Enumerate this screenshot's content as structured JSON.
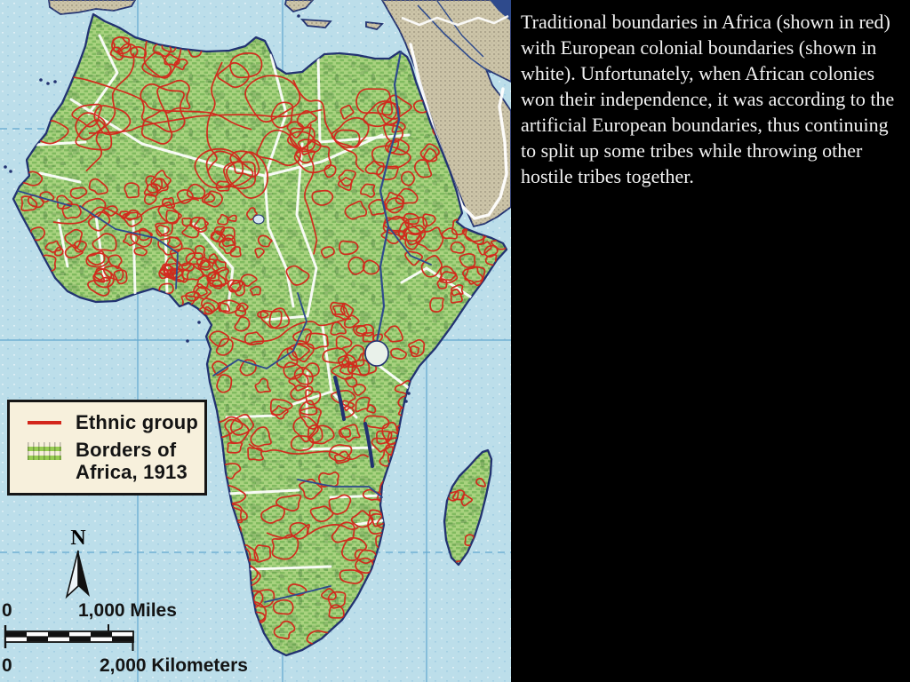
{
  "slide": {
    "caption": "Traditional boundaries in Africa (shown in red) with European colonial boundaries (shown in white). Unfortunately, when African colonies won their independence, it was according to the artificial European boundaries, thus continuing to split up some tribes while throwing other hostile tribes together."
  },
  "map": {
    "legend": {
      "items": [
        {
          "id": "ethnic-group",
          "swatch": "red-line",
          "label": "Ethnic group"
        },
        {
          "id": "borders-of-africa-1913",
          "swatch": "green-hatch",
          "lines": [
            "Borders of",
            "Africa, 1913"
          ]
        }
      ]
    },
    "compass": {
      "label": "N",
      "icon": "north-arrow-icon"
    },
    "scale_bar": {
      "miles": {
        "zero": "0",
        "label": "1,000 Miles"
      },
      "kilometers": {
        "zero": "0",
        "label": "2,000 Kilometers"
      }
    },
    "colors": {
      "ocean": "#bcdeea",
      "land_green": "#a9d27f",
      "land_hatch_green": "#5fa845",
      "land_relief_dark": "#2f5f2a",
      "ethnic_line_red": "#d3261b",
      "colonial_line_white": "#ffffff",
      "coastline_navy": "#223271",
      "graticule_blue": "#63a8cf",
      "river_blue": "#2e4a8c",
      "foreign_land_tan": "#cdc5a9",
      "foreign_land_dark": "#8d8672",
      "lake_fill": "#e9f1ea",
      "legend_bg": "#f7f0dc",
      "legend_hatch_green": "#97cc52",
      "text_ink": "#141414",
      "caption_white": "#f2f2f2",
      "panel_black": "#000000"
    }
  }
}
